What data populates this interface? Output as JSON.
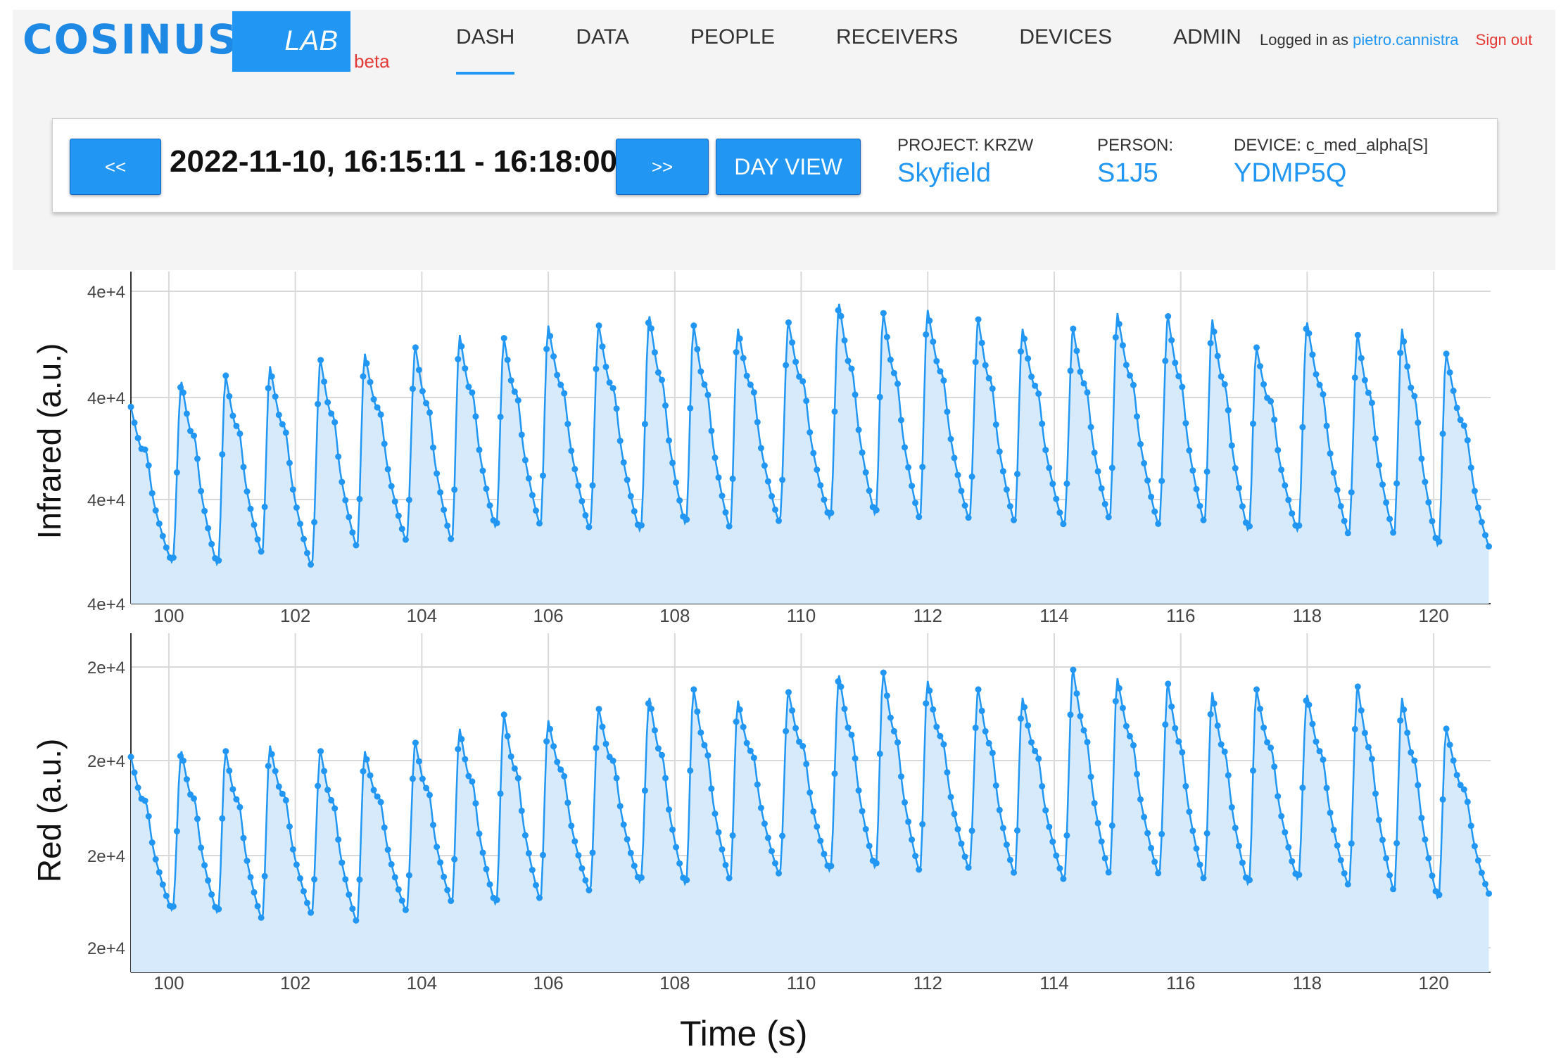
{
  "header": {
    "logo": "COSINUSS",
    "logo_degree": "°",
    "lab": "LAB",
    "beta": "beta",
    "nav": [
      {
        "label": "DASH",
        "active": true
      },
      {
        "label": "DATA",
        "active": false
      },
      {
        "label": "PEOPLE",
        "active": false
      },
      {
        "label": "RECEIVERS",
        "active": false
      },
      {
        "label": "DEVICES",
        "active": false
      },
      {
        "label": "ADMIN",
        "active": false
      }
    ],
    "logged_in_as": "Logged in as",
    "username": "pietro.cannistra",
    "sign_out": "Sign out"
  },
  "toolbar": {
    "prev_label": "<<",
    "next_label": ">>",
    "range": "2022-11-10, 16:15:11 - 16:18:00",
    "day_view_label": "DAY VIEW",
    "project_label": "PROJECT: KRZW",
    "project_value": "Skyfield",
    "person_label": "PERSON:",
    "person_value": "S1J5",
    "device_label": "DEVICE: c_med_alpha[S]",
    "device_value": "YDMP5Q"
  },
  "figure": {
    "xlabel": "Time (s)"
  },
  "chart_data": [
    {
      "type": "line",
      "ylabel": "Infrared (a.u.)",
      "ytick_labels": [
        "4e+4",
        "4e+4",
        "4e+4",
        "4e+4"
      ],
      "xticks": [
        100,
        102,
        104,
        106,
        108,
        110,
        112,
        114,
        116,
        118,
        120
      ],
      "xlim": [
        99.4,
        120.9
      ],
      "ylim": [
        0,
        1
      ],
      "fill": true,
      "color": "#2196f3",
      "fill_color": "#d6eafb",
      "series": [
        {
          "peak_times": [
            99.4,
            100.2,
            100.9,
            101.6,
            102.4,
            103.1,
            103.9,
            104.6,
            105.3,
            106.0,
            106.8,
            107.6,
            108.3,
            109.0,
            109.8,
            110.6,
            111.3,
            112.0,
            112.8,
            113.5,
            114.3,
            115.0,
            115.8,
            116.5,
            117.2,
            118.0,
            118.8,
            119.5
          ],
          "peak_levels": [
            0.63,
            0.71,
            0.73,
            0.76,
            0.78,
            0.8,
            0.82,
            0.86,
            0.85,
            0.89,
            0.89,
            0.92,
            0.89,
            0.88,
            0.9,
            0.96,
            0.93,
            0.94,
            0.91,
            0.88,
            0.88,
            0.93,
            0.92,
            0.91,
            0.82,
            0.9,
            0.86,
            0.88
          ],
          "trough_levels": [
            0.13,
            0.12,
            0.16,
            0.12,
            0.18,
            0.2,
            0.2,
            0.24,
            0.25,
            0.24,
            0.23,
            0.25,
            0.24,
            0.26,
            0.27,
            0.28,
            0.27,
            0.27,
            0.26,
            0.25,
            0.27,
            0.25,
            0.26,
            0.23,
            0.23,
            0.22,
            0.22,
            0.18
          ],
          "last_peak": {
            "t": 120.2,
            "level": 0.8
          },
          "end_level": 0.17
        }
      ]
    },
    {
      "type": "line",
      "ylabel": "Red (a.u.)",
      "ytick_labels": [
        "2e+4",
        "2e+4",
        "2e+4",
        "2e+4"
      ],
      "xticks": [
        100,
        102,
        104,
        106,
        108,
        110,
        112,
        114,
        116,
        118,
        120
      ],
      "xlim": [
        99.4,
        120.9
      ],
      "ylim": [
        0,
        1
      ],
      "fill": true,
      "color": "#2196f3",
      "fill_color": "#d6eafb",
      "series": [
        {
          "peak_times": [
            99.4,
            100.2,
            100.9,
            101.6,
            102.4,
            103.1,
            103.9,
            104.6,
            105.3,
            106.0,
            106.8,
            107.6,
            108.3,
            109.0,
            109.8,
            110.6,
            111.3,
            112.0,
            112.8,
            113.5,
            114.3,
            115.0,
            115.8,
            116.5,
            117.2,
            118.0,
            118.8,
            119.5
          ],
          "peak_levels": [
            0.68,
            0.7,
            0.7,
            0.72,
            0.7,
            0.7,
            0.73,
            0.78,
            0.83,
            0.81,
            0.85,
            0.89,
            0.92,
            0.88,
            0.91,
            0.97,
            0.98,
            0.95,
            0.92,
            0.89,
            0.99,
            0.96,
            0.94,
            0.91,
            0.92,
            0.9,
            0.93,
            0.89
          ],
          "trough_levels": [
            0.13,
            0.12,
            0.1,
            0.12,
            0.09,
            0.13,
            0.16,
            0.15,
            0.17,
            0.2,
            0.23,
            0.22,
            0.24,
            0.26,
            0.27,
            0.28,
            0.27,
            0.28,
            0.26,
            0.24,
            0.26,
            0.26,
            0.24,
            0.22,
            0.24,
            0.22,
            0.2,
            0.17
          ],
          "last_peak": {
            "t": 120.2,
            "level": 0.78
          },
          "end_level": 0.18
        }
      ]
    }
  ]
}
